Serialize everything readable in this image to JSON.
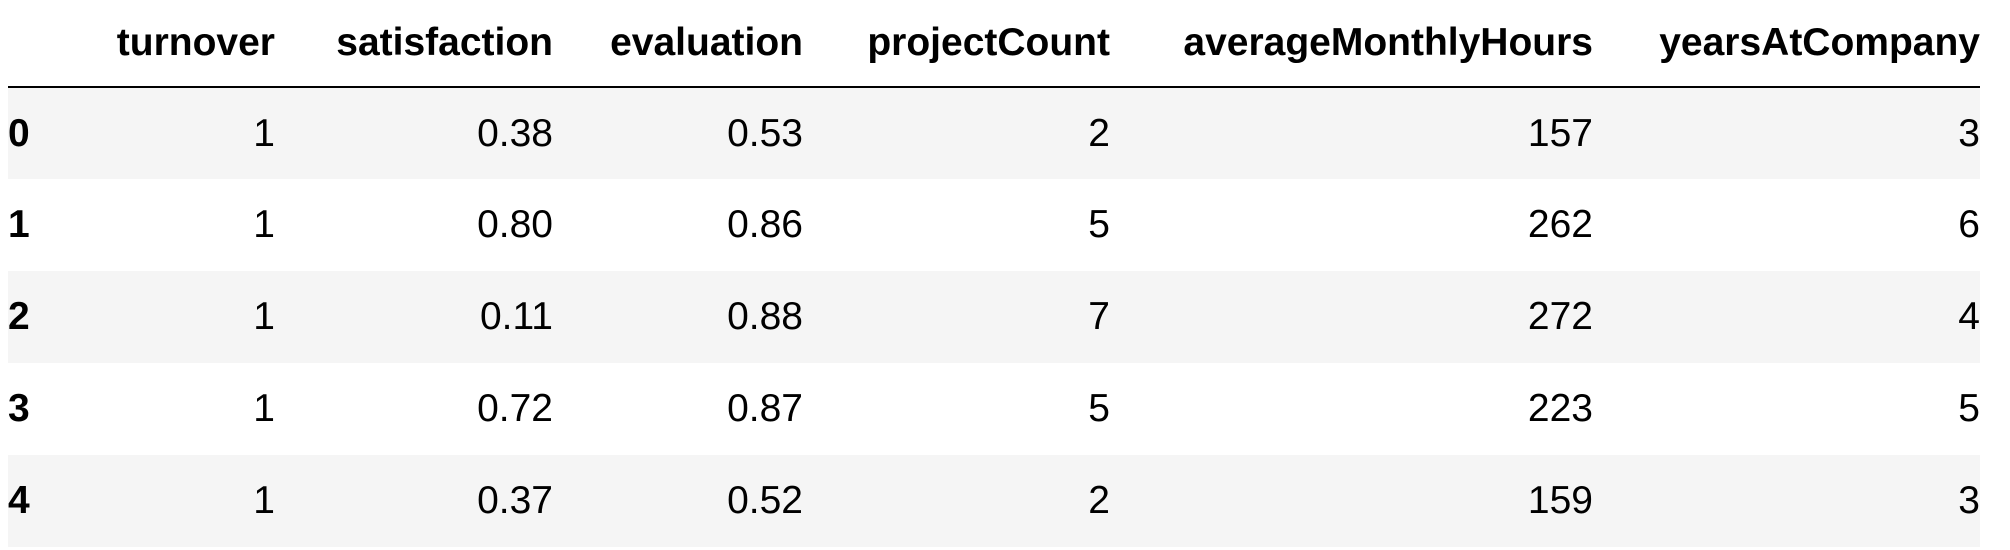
{
  "table": {
    "columns": [
      "",
      "turnover",
      "satisfaction",
      "evaluation",
      "projectCount",
      "averageMonthlyHours",
      "yearsAtCompany"
    ],
    "rows": [
      {
        "index": "0",
        "cells": [
          "1",
          "0.38",
          "0.53",
          "2",
          "157",
          "3"
        ]
      },
      {
        "index": "1",
        "cells": [
          "1",
          "0.80",
          "0.86",
          "5",
          "262",
          "6"
        ]
      },
      {
        "index": "2",
        "cells": [
          "1",
          "0.11",
          "0.88",
          "7",
          "272",
          "4"
        ]
      },
      {
        "index": "3",
        "cells": [
          "1",
          "0.72",
          "0.87",
          "5",
          "223",
          "5"
        ]
      },
      {
        "index": "4",
        "cells": [
          "1",
          "0.37",
          "0.52",
          "2",
          "159",
          "3"
        ]
      }
    ]
  },
  "colors": {
    "stripe": "#f5f5f5",
    "background": "#ffffff",
    "header_rule": "#000000"
  }
}
